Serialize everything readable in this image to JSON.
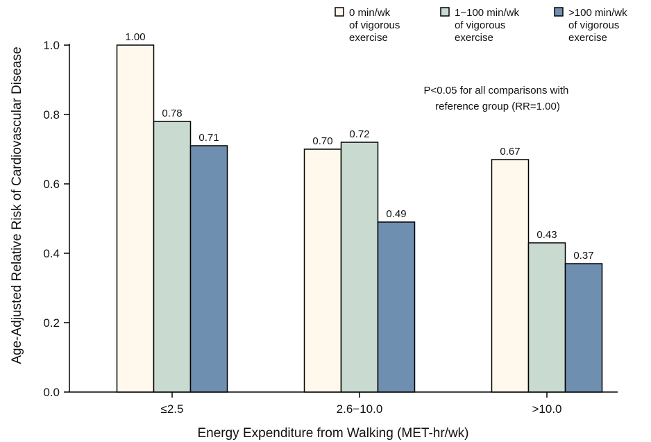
{
  "chart_data": {
    "type": "bar",
    "xlabel": "Energy Expenditure from Walking (MET-hr/wk)",
    "ylabel": "Age-Adjusted Relative Risk of Cardiovascular Disease",
    "categories": [
      "≤2.5",
      "2.6−10.0",
      ">10.0"
    ],
    "ylim": [
      0,
      1.0
    ],
    "yticks": [
      "0.0",
      "0.2",
      "0.4",
      "0.6",
      "0.8",
      "1.0"
    ],
    "grid": false,
    "legend_position": "top-right",
    "series": [
      {
        "name": "0 min/wk of vigorous exercise",
        "legend_lines": [
          "0 min/wk",
          "of  vigorous",
          "exercise"
        ],
        "color": "#fff8ec",
        "values": [
          1.0,
          0.7,
          0.67
        ],
        "labels": [
          "1.00",
          "0.70",
          "0.67"
        ]
      },
      {
        "name": "1−100 min/wk of vigorous exercise",
        "legend_lines": [
          "1−100 min/wk",
          "of vigorous",
          "exercise"
        ],
        "color": "#c9dbd0",
        "values": [
          0.78,
          0.72,
          0.43
        ],
        "labels": [
          "0.78",
          "0.72",
          "0.43"
        ]
      },
      {
        "name": ">100 min/wk of vigorous exercise",
        "legend_lines": [
          ">100 min/wk",
          "of vigorous",
          "exercise"
        ],
        "color": "#6f8fb1",
        "values": [
          0.71,
          0.49,
          0.37
        ],
        "labels": [
          "0.71",
          "0.49",
          "0.37"
        ]
      }
    ],
    "annotation": [
      "P<0.05 for all comparisons with",
      "reference group (RR=1.00)"
    ]
  }
}
